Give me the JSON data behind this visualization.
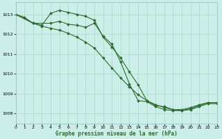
{
  "title": "Graphe pression niveau de la mer (hPa)",
  "bg_color": "#cceee8",
  "grid_color": "#aaddcc",
  "line_color": "#2d6a2d",
  "x_min": 0,
  "x_max": 23,
  "y_min": 1007.5,
  "y_max": 1013.6,
  "y_ticks": [
    1008,
    1009,
    1010,
    1011,
    1012,
    1013
  ],
  "x_ticks": [
    0,
    1,
    2,
    3,
    4,
    5,
    6,
    7,
    8,
    9,
    10,
    11,
    12,
    13,
    14,
    15,
    16,
    17,
    18,
    19,
    20,
    21,
    22,
    23
  ],
  "series": [
    {
      "x": [
        0,
        1,
        2,
        3,
        4,
        5,
        6,
        7,
        8,
        9,
        10,
        11,
        12,
        13,
        14,
        15,
        16,
        17,
        18,
        19,
        20,
        21,
        22,
        23
      ],
      "y": [
        1013.0,
        1012.85,
        1012.55,
        1012.45,
        1013.05,
        1013.2,
        1013.1,
        1013.0,
        1012.9,
        1012.7,
        1011.85,
        1011.35,
        1010.8,
        1010.1,
        1009.45,
        1008.65,
        1008.4,
        1008.35,
        1008.2,
        1008.2,
        1008.3,
        1008.45,
        1008.55,
        1008.55
      ]
    },
    {
      "x": [
        0,
        2,
        3,
        4,
        5,
        6,
        7,
        8,
        9,
        10,
        11,
        12,
        13,
        14,
        15,
        16,
        17,
        18,
        19,
        20,
        21,
        22,
        23
      ],
      "y": [
        1013.0,
        1012.55,
        1012.4,
        1012.3,
        1012.2,
        1012.05,
        1011.85,
        1011.6,
        1011.3,
        1010.8,
        1010.3,
        1009.8,
        1009.35,
        1008.95,
        1008.65,
        1008.45,
        1008.3,
        1008.2,
        1008.15,
        1008.2,
        1008.35,
        1008.5,
        1008.5
      ]
    },
    {
      "x": [
        0,
        2,
        4,
        5,
        6,
        7,
        8,
        9,
        10,
        11,
        12,
        13,
        14,
        15,
        16,
        17,
        18,
        19,
        20,
        21,
        22,
        23
      ],
      "y": [
        1013.0,
        1012.55,
        1012.55,
        1012.65,
        1012.5,
        1012.45,
        1012.35,
        1012.55,
        1011.9,
        1011.5,
        1010.6,
        1009.5,
        1008.65,
        1008.6,
        1008.35,
        1008.2,
        1008.15,
        1008.15,
        1008.25,
        1008.4,
        1008.55,
        1008.55
      ]
    }
  ]
}
